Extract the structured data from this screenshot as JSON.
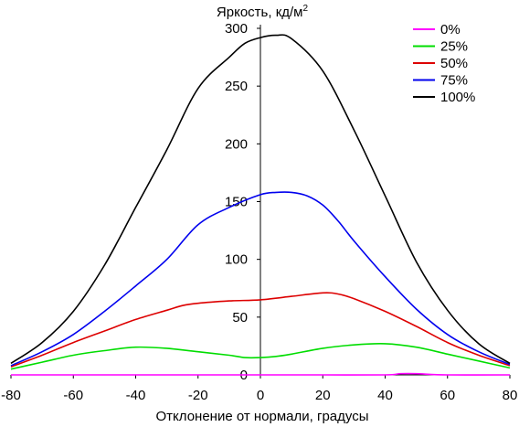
{
  "chart_data": {
    "type": "line",
    "title": "",
    "ylabel": "Яркость, кд/м",
    "ylabel_sup": "2",
    "xlabel": "Отклонение от нормали, градусы",
    "xlim": [
      -80,
      80
    ],
    "ylim": [
      0,
      300
    ],
    "xticks": [
      -80,
      -60,
      -40,
      -20,
      0,
      20,
      40,
      60,
      80
    ],
    "yticks": [
      0,
      50,
      100,
      150,
      200,
      250,
      300
    ],
    "grid": false,
    "legend_position": "top-right",
    "series": [
      {
        "name": "0%",
        "color": "#ff00ff",
        "x": [
          -80,
          -60,
          -40,
          -20,
          0,
          20,
          40,
          45,
          50,
          60,
          80
        ],
        "y": [
          0,
          0,
          0,
          0,
          0,
          0,
          0,
          1,
          1,
          0,
          0
        ]
      },
      {
        "name": "25%",
        "color": "#00dd00",
        "x": [
          -80,
          -70,
          -60,
          -50,
          -40,
          -30,
          -20,
          -10,
          -5,
          0,
          5,
          10,
          20,
          30,
          40,
          50,
          60,
          70,
          80
        ],
        "y": [
          5,
          11,
          17,
          21,
          24,
          23,
          20,
          17,
          15,
          15,
          16,
          18,
          23,
          26,
          27,
          24,
          18,
          12,
          6
        ]
      },
      {
        "name": "50%",
        "color": "#dd0000",
        "x": [
          -80,
          -70,
          -60,
          -50,
          -40,
          -30,
          -25,
          -20,
          -10,
          0,
          10,
          20,
          25,
          30,
          40,
          50,
          60,
          70,
          80
        ],
        "y": [
          7,
          17,
          28,
          38,
          48,
          56,
          60,
          62,
          64,
          65,
          68,
          71,
          70,
          66,
          55,
          42,
          28,
          17,
          8
        ]
      },
      {
        "name": "75%",
        "color": "#0000ee",
        "x": [
          -80,
          -70,
          -60,
          -50,
          -40,
          -30,
          -20,
          -10,
          0,
          5,
          10,
          15,
          20,
          25,
          30,
          40,
          50,
          60,
          70,
          80
        ],
        "y": [
          8,
          20,
          35,
          55,
          77,
          100,
          130,
          145,
          156,
          158,
          158,
          155,
          147,
          133,
          116,
          85,
          57,
          35,
          20,
          9
        ]
      },
      {
        "name": "100%",
        "color": "#000000",
        "x": [
          -80,
          -70,
          -60,
          -50,
          -40,
          -30,
          -20,
          -10,
          -5,
          0,
          5,
          10,
          20,
          30,
          40,
          50,
          60,
          70,
          80
        ],
        "y": [
          10,
          28,
          55,
          95,
          145,
          195,
          248,
          275,
          287,
          292,
          294,
          291,
          263,
          212,
          155,
          98,
          56,
          27,
          10
        ]
      }
    ]
  }
}
